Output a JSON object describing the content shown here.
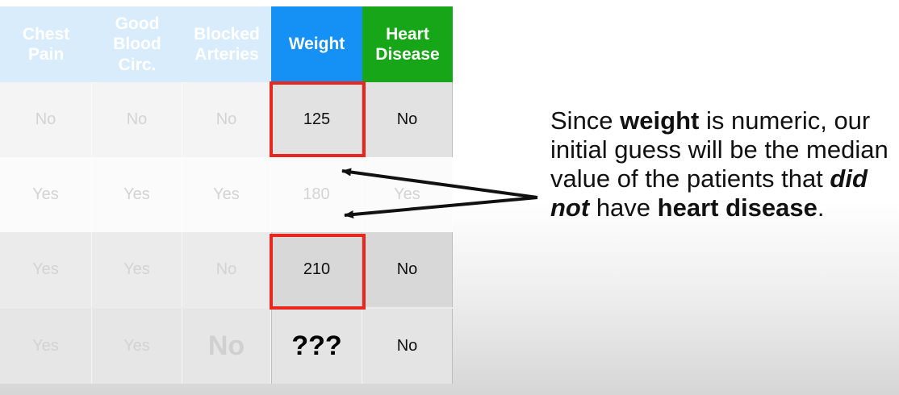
{
  "table": {
    "headers": [
      {
        "lines": [
          "Chest",
          "Pain"
        ]
      },
      {
        "lines": [
          "Good",
          "Blood",
          "Circ."
        ]
      },
      {
        "lines": [
          "Blocked",
          "Arteries"
        ]
      },
      {
        "lines": [
          "Weight"
        ]
      },
      {
        "lines": [
          "Heart",
          "Disease"
        ]
      }
    ],
    "rows": [
      [
        "No",
        "No",
        "No",
        "125",
        "No"
      ],
      [
        "Yes",
        "Yes",
        "Yes",
        "180",
        "Yes"
      ],
      [
        "Yes",
        "Yes",
        "No",
        "210",
        "No"
      ],
      [
        "Yes",
        "Yes",
        "No",
        "???",
        "No"
      ]
    ]
  },
  "colors": {
    "weight_header": "#1590f5",
    "heart_header": "#17a617",
    "faded_header": "#d9ecfc",
    "highlight": "#e8271f"
  },
  "note": {
    "p1": "Since ",
    "b1": "weight",
    "p2": " is numeric, our initial guess will be the median value of the patients that ",
    "bi": "did not",
    "p3": " have ",
    "b2": "heart disease",
    "p4": "."
  }
}
